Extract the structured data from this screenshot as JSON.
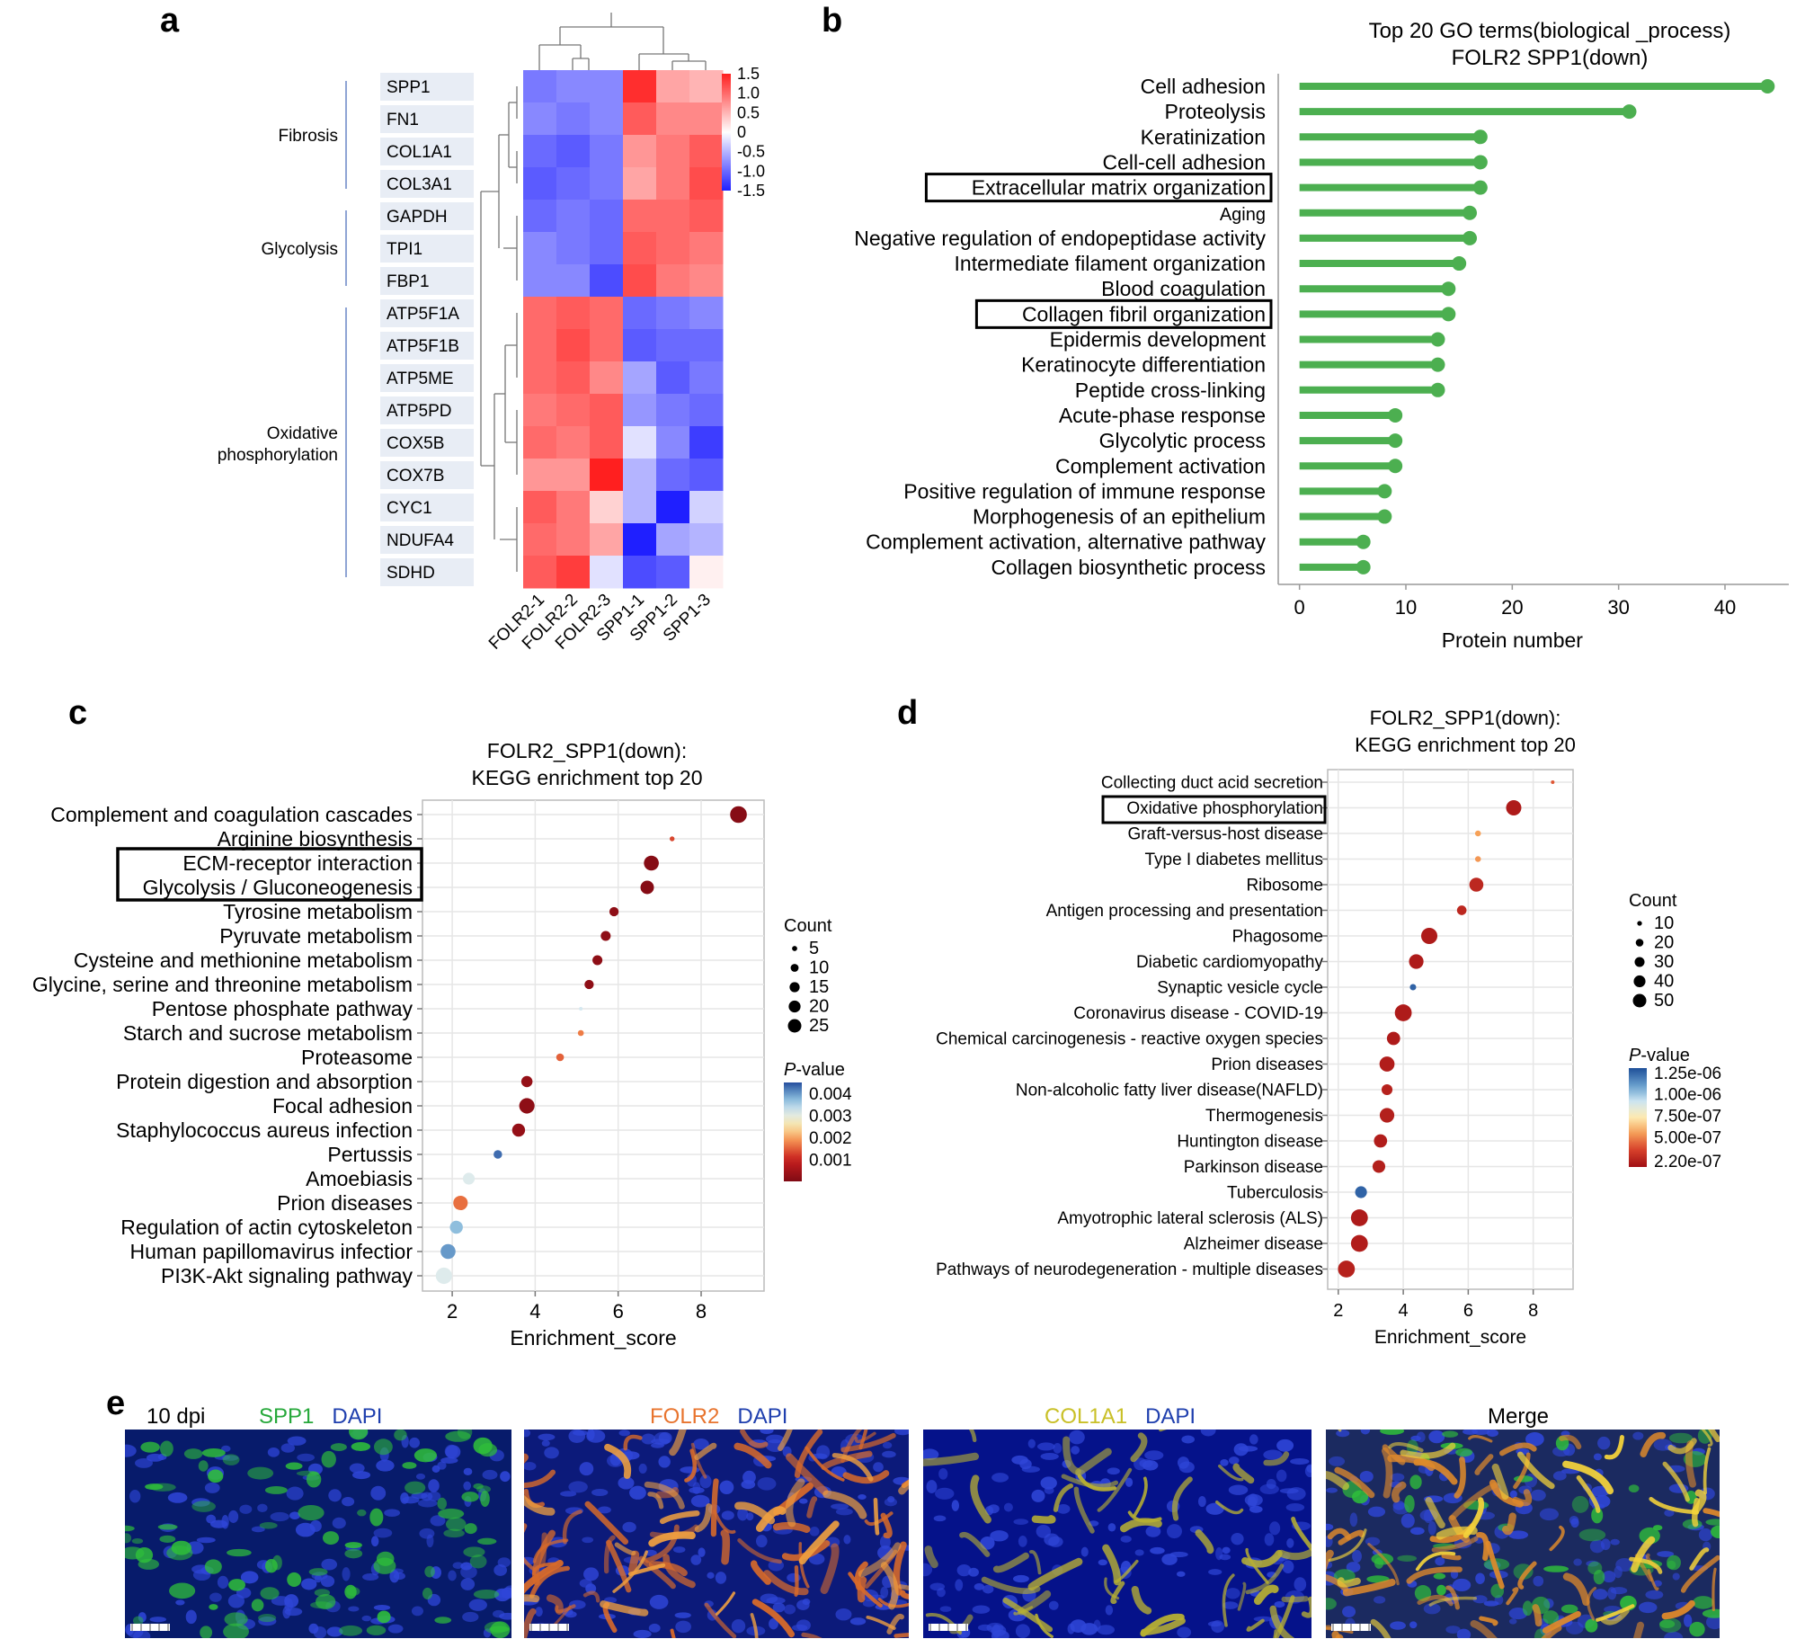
{
  "panel_labels": {
    "a": "a",
    "b": "b",
    "c": "c",
    "d": "d",
    "e": "e"
  },
  "colors": {
    "bar_green": "#4caf50",
    "heat_high": "#ff1f1f",
    "heat_mid": "#ffffff",
    "heat_low": "#1f1fff",
    "pval_low": "#7f0a14",
    "pval_high": "#2b5ea8"
  },
  "chart_data": [
    {
      "id": "a",
      "type": "heatmap",
      "title": "",
      "rows": [
        "SPP1",
        "FN1",
        "COL1A1",
        "COL3A1",
        "GAPDH",
        "TPI1",
        "FBP1",
        "ATP5F1A",
        "ATP5F1B",
        "ATP5ME",
        "ATP5PD",
        "COX5B",
        "COX7B",
        "CYC1",
        "NDUFA4",
        "SDHD"
      ],
      "columns": [
        "FOLR2-1",
        "FOLR2-2",
        "FOLR2-3",
        "SPP1-1",
        "SPP1-2",
        "SPP1-3"
      ],
      "groups": [
        {
          "name": "Fibrosis",
          "rows": [
            0,
            3
          ]
        },
        {
          "name": "Glycolysis",
          "rows": [
            4,
            6
          ]
        },
        {
          "name": "Oxidative phosphorylation",
          "rows": [
            7,
            15
          ]
        }
      ],
      "values": [
        [
          -0.9,
          -0.8,
          -0.8,
          1.4,
          0.6,
          0.5
        ],
        [
          -0.8,
          -0.9,
          -0.8,
          1.1,
          0.8,
          0.8
        ],
        [
          -1.0,
          -1.1,
          -0.9,
          0.7,
          0.9,
          1.1
        ],
        [
          -1.1,
          -1.0,
          -0.9,
          0.6,
          0.9,
          1.2
        ],
        [
          -1.0,
          -0.9,
          -1.0,
          1.0,
          1.0,
          1.1
        ],
        [
          -0.8,
          -0.9,
          -1.0,
          1.1,
          1.0,
          0.9
        ],
        [
          -0.8,
          -0.8,
          -1.2,
          1.2,
          0.9,
          0.8
        ],
        [
          1.0,
          1.1,
          1.0,
          -1.0,
          -0.9,
          -0.8
        ],
        [
          1.0,
          1.2,
          1.0,
          -1.1,
          -1.0,
          -1.0
        ],
        [
          1.0,
          1.1,
          0.8,
          -0.6,
          -1.1,
          -0.9
        ],
        [
          0.9,
          1.0,
          1.1,
          -0.7,
          -0.9,
          -1.0
        ],
        [
          1.0,
          0.9,
          1.1,
          -0.2,
          -0.8,
          -1.3
        ],
        [
          0.7,
          0.7,
          1.6,
          -0.5,
          -1.0,
          -1.1
        ],
        [
          1.1,
          0.9,
          0.3,
          -0.5,
          -1.7,
          -0.3
        ],
        [
          1.0,
          0.9,
          0.6,
          -1.5,
          -0.6,
          -0.5
        ],
        [
          1.1,
          1.3,
          -0.2,
          -1.2,
          -1.1,
          0.1
        ]
      ],
      "scale_ticks": [
        "1.5",
        "1.0",
        "0.5",
        "0",
        "-0.5",
        "-1.0",
        "-1.5"
      ],
      "scale_tick_values": [
        1.5,
        1.0,
        0.5,
        0,
        -0.5,
        -1.0,
        -1.5
      ],
      "range": [
        -1.5,
        1.5
      ]
    },
    {
      "id": "b",
      "type": "bar",
      "title": "Top 20 GO terms(biological _process)",
      "subtitle": "FOLR2 SPP1(down)",
      "xlabel": "Protein number",
      "ylabel": "",
      "xlim": [
        -2,
        46
      ],
      "xticks": [
        0,
        10,
        20,
        30,
        40
      ],
      "categories": [
        "Cell adhesion",
        "Proteolysis",
        "Keratinization",
        "Cell-cell adhesion",
        "Extracellular matrix organization",
        "Aging",
        "Negative regulation of endopeptidase activity",
        "Intermediate filament organization",
        "Blood coagulation",
        "Collagen fibril organization",
        "Epidermis development",
        "Keratinocyte differentiation",
        "Peptide cross-linking",
        "Acute-phase response",
        "Glycolytic process",
        "Complement activation",
        "Positive regulation of immune response",
        "Morphogenesis of an epithelium",
        "Complement activation, alternative pathway",
        "Collagen biosynthetic process"
      ],
      "values": [
        44,
        31,
        17,
        17,
        17,
        16,
        16,
        15,
        14,
        14,
        13,
        13,
        13,
        9,
        9,
        9,
        8,
        8,
        6,
        6
      ],
      "highlighted": [
        "Extracellular matrix organization",
        "Collagen fibril organization"
      ]
    },
    {
      "id": "c",
      "type": "scatter",
      "title": "FOLR2_SPP1(down):",
      "subtitle": "KEGG enrichment top 20",
      "xlabel": "Enrichment_score",
      "ylabel": "",
      "xlim": [
        1.5,
        9.3
      ],
      "xticks": [
        2,
        4,
        6,
        8
      ],
      "categories": [
        "Complement and coagulation cascades",
        "Arginine biosynthesis",
        "ECM-receptor interaction",
        "Glycolysis / Gluconeogenesis",
        "Tyrosine metabolism",
        "Pyruvate metabolism",
        "Cysteine and methionine metabolism",
        "Glycine, serine and threonine metabolism",
        "Pentose phosphate pathway",
        "Starch and sucrose metabolism",
        "Proteasome",
        "Protein digestion and absorption",
        "Focal adhesion",
        "Staphylococcus aureus infection",
        "Pertussis",
        "Amoebiasis",
        "Prion diseases",
        "Regulation of actin cytoskeleton",
        "Human papillomavirus infectior",
        "PI3K-Akt signaling pathway"
      ],
      "x": [
        8.9,
        7.3,
        6.8,
        6.7,
        5.9,
        5.7,
        5.5,
        5.3,
        5.1,
        5.1,
        4.6,
        3.8,
        3.8,
        3.6,
        3.1,
        2.4,
        2.2,
        2.1,
        1.9,
        1.8
      ],
      "count": [
        22,
        3,
        18,
        15,
        8,
        9,
        9,
        8,
        2,
        4,
        6,
        11,
        19,
        14,
        7,
        12,
        17,
        14,
        18,
        21
      ],
      "pvalue": [
        0.0001,
        0.0013,
        0.0001,
        0.0001,
        0.0002,
        0.0002,
        0.0002,
        0.0002,
        0.0032,
        0.0017,
        0.0015,
        0.0003,
        0.0002,
        0.0003,
        0.0043,
        0.0031,
        0.0016,
        0.0037,
        0.004,
        0.0031
      ],
      "legend_count_title": "Count",
      "legend_count": [
        "5",
        "10",
        "15",
        "20",
        "25"
      ],
      "legend_count_values": [
        5,
        10,
        15,
        20,
        25
      ],
      "legend_p_title": "P-value",
      "legend_p_ticks": [
        "0.004",
        "0.003",
        "0.002",
        "0.001"
      ],
      "legend_p_values": [
        0.004,
        0.003,
        0.002,
        0.001
      ],
      "prange": [
        0.0,
        0.0045
      ],
      "highlighted": [
        "ECM-receptor interaction",
        "Glycolysis / Gluconeogenesis"
      ]
    },
    {
      "id": "d",
      "type": "scatter",
      "title": "FOLR2_SPP1(down):",
      "subtitle": "KEGG enrichment top 20",
      "xlabel": "Enrichment_score",
      "ylabel": "",
      "xlim": [
        1.95,
        8.95
      ],
      "xticks": [
        2,
        4,
        6,
        8
      ],
      "categories": [
        "Collecting duct acid secretion",
        "Oxidative phosphorylation",
        "Graft-versus-host disease",
        "Type I diabetes mellitus",
        "Ribosome",
        "Antigen processing and presentation",
        "Phagosome",
        "Diabetic cardiomyopathy",
        "Synaptic vesicle cycle",
        "Coronavirus disease - COVID-19",
        "Chemical carcinogenesis - reactive oxygen species",
        "Prion diseases",
        "Non-alcoholic fatty liver disease(NAFLD)",
        "Thermogenesis",
        "Huntington disease",
        "Parkinson disease",
        "Tuberculosis",
        "Amyotrophic lateral sclerosis (ALS)",
        "Alzheimer disease",
        "Pathways of neurodegeneration - multiple diseases"
      ],
      "x": [
        8.6,
        7.4,
        6.3,
        6.3,
        6.25,
        5.8,
        4.8,
        4.4,
        4.3,
        4.0,
        3.7,
        3.5,
        3.5,
        3.5,
        3.3,
        3.25,
        2.7,
        2.65,
        2.65,
        2.25
      ],
      "count": [
        5,
        38,
        9,
        9,
        33,
        18,
        42,
        35,
        10,
        45,
        30,
        37,
        22,
        35,
        30,
        28,
        25,
        45,
        45,
        45
      ],
      "pvalue": [
        4e-07,
        2e-07,
        5.5e-07,
        5.3e-07,
        2.5e-07,
        2.5e-07,
        2e-07,
        2e-07,
        1.25e-06,
        2e-07,
        2e-07,
        2.1e-07,
        2.3e-07,
        2.2e-07,
        2.1e-07,
        2.2e-07,
        1.25e-06,
        2e-07,
        2.1e-07,
        2.3e-07
      ],
      "legend_count_title": "Count",
      "legend_count": [
        "10",
        "20",
        "30",
        "40",
        "50"
      ],
      "legend_count_values": [
        10,
        20,
        30,
        40,
        50
      ],
      "legend_p_title": "P-value",
      "legend_p_ticks": [
        "1.25e-06",
        "1.00e-06",
        "7.50e-07",
        "5.00e-07",
        "2.20e-07"
      ],
      "legend_p_values": [
        1.25e-06,
        1e-06,
        7.5e-07,
        5e-07,
        2.2e-07
      ],
      "prange": [
        1.5e-07,
        1.3e-06
      ],
      "highlighted": [
        "Oxidative phosphorylation"
      ]
    }
  ],
  "panel_e": {
    "label_time": "10 dpi",
    "images": [
      {
        "stain1": "SPP1",
        "stain1_color": "#26a83a",
        "stain2": "DAPI",
        "stain2_color": "#1f3fae",
        "base": "#071b6b"
      },
      {
        "stain1": "FOLR2",
        "stain1_color": "#e8742e",
        "stain2": "DAPI",
        "stain2_color": "#1f3fae",
        "base": "#0c1a7a"
      },
      {
        "stain1": "COL1A1",
        "stain1_color": "#c9c027",
        "stain2": "DAPI",
        "stain2_color": "#1f3fae",
        "base": "#05128a"
      },
      {
        "stain1": "Merge",
        "stain1_color": "#000000",
        "stain2": "",
        "stain2_color": "#000000",
        "base": "#1b2a60"
      }
    ]
  }
}
